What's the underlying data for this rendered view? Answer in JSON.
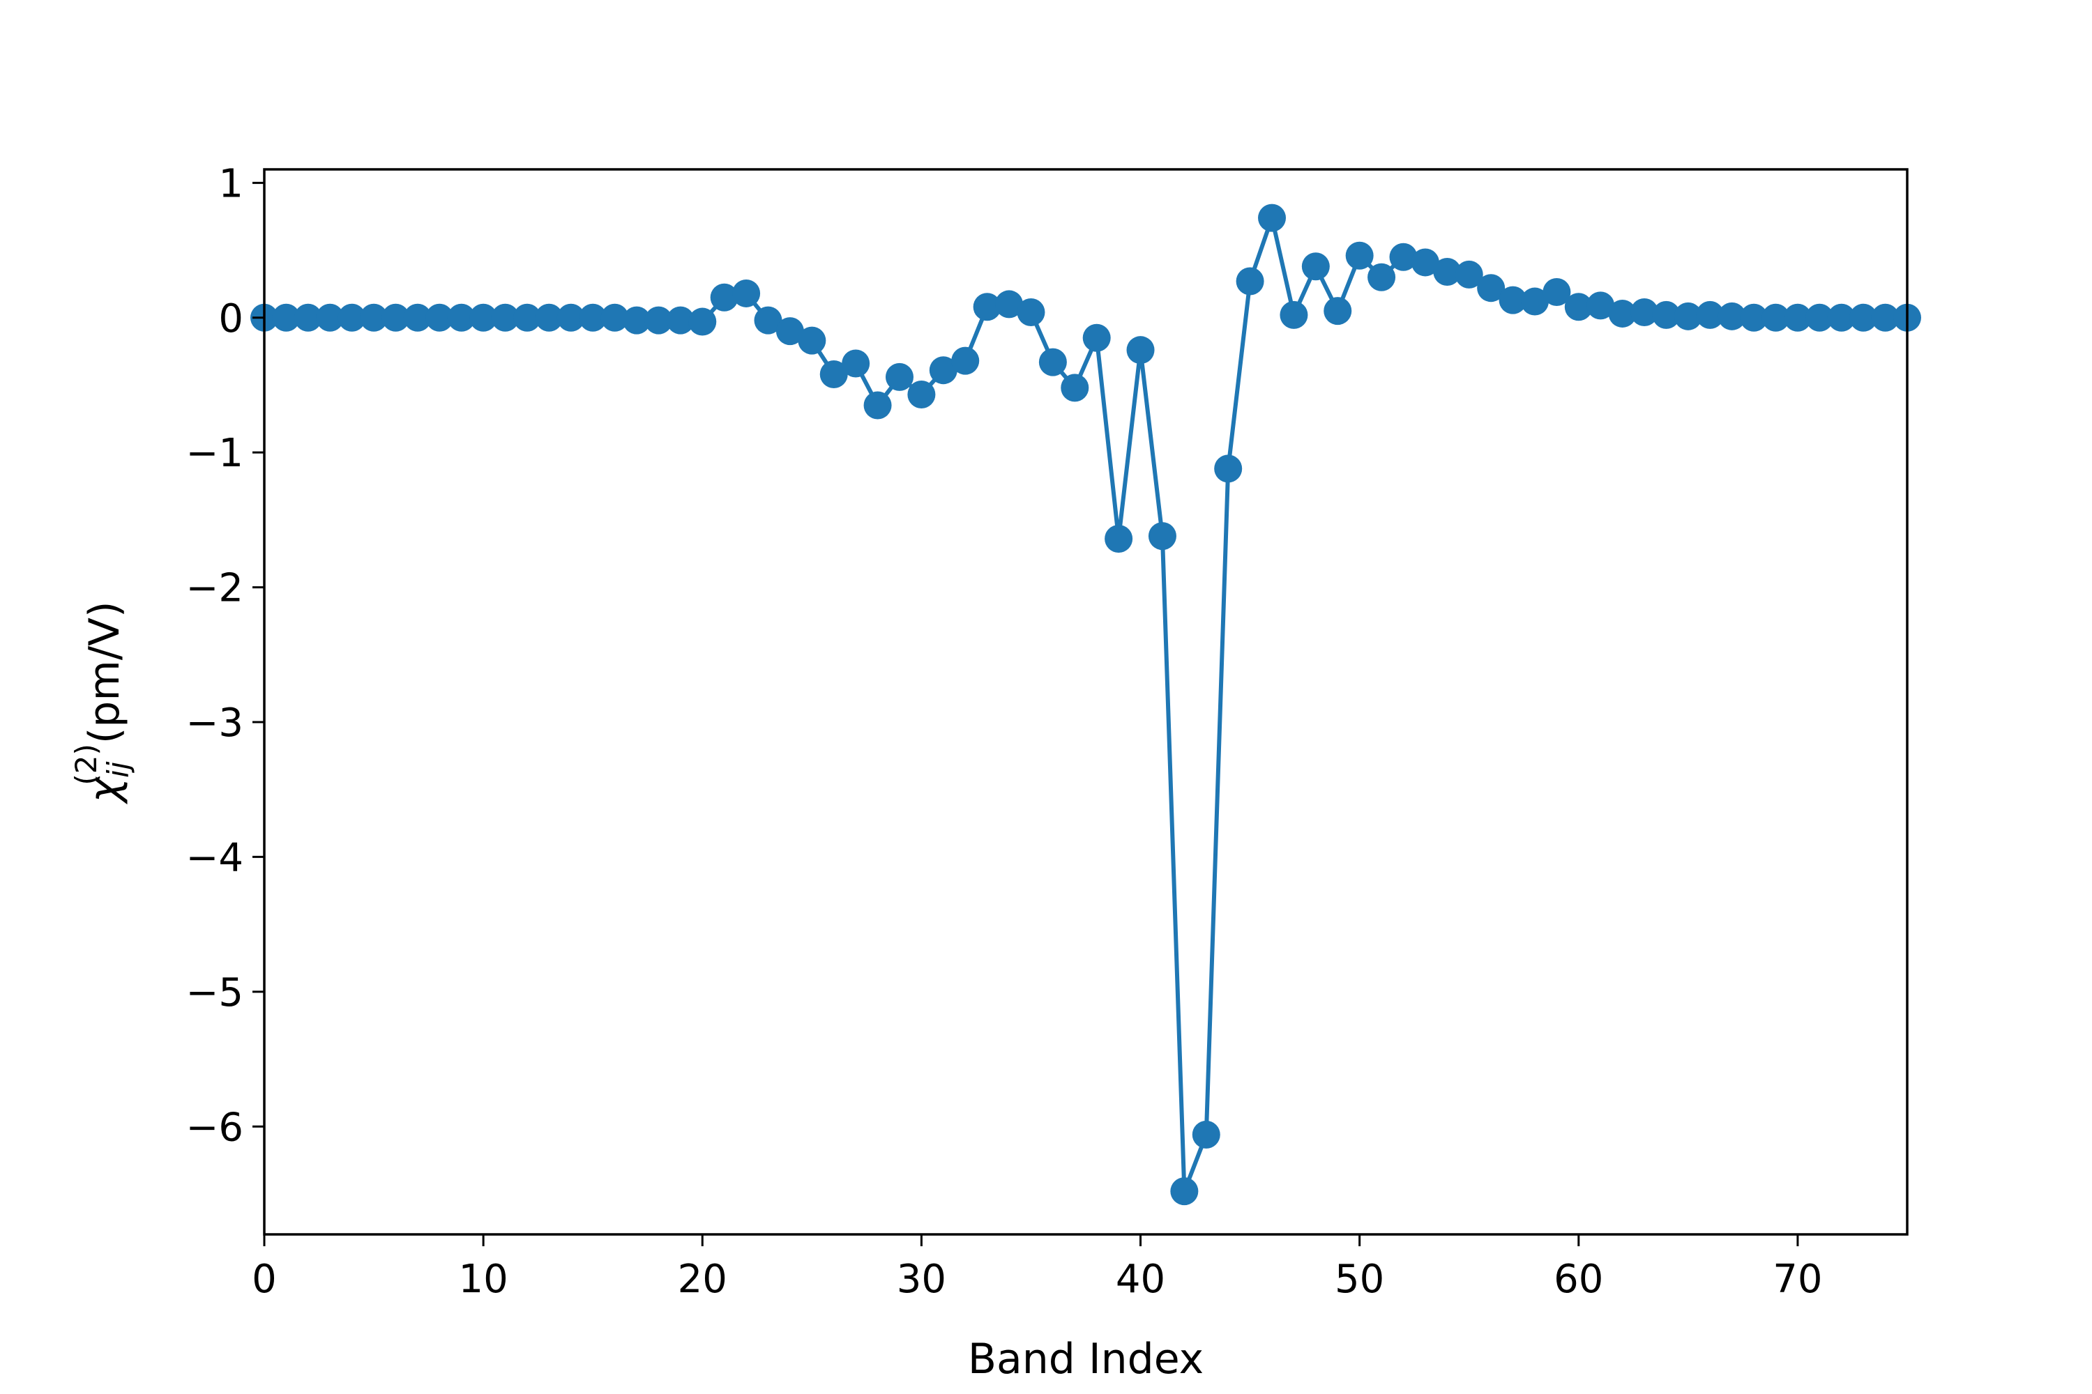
{
  "chart_data": {
    "type": "line",
    "title": "",
    "xlabel": "Band Index",
    "ylabel": {
      "symbol": "χ",
      "subscript": "ij",
      "superscript": "(2)",
      "unit": "(pm/V)"
    },
    "xlim": [
      0,
      75
    ],
    "ylim": [
      -6.8,
      1.1
    ],
    "xticks": [
      0,
      10,
      20,
      30,
      40,
      50,
      60,
      70
    ],
    "yticks": [
      1,
      0,
      -1,
      -2,
      -3,
      -4,
      -5,
      -6
    ],
    "xtick_labels": [
      "0",
      "10",
      "20",
      "30",
      "40",
      "50",
      "60",
      "70"
    ],
    "ytick_labels": [
      "1",
      "0",
      "−1",
      "−2",
      "−3",
      "−4",
      "−5",
      "−6"
    ],
    "grid": false,
    "series": [
      {
        "color": "#1f77b4",
        "marker": "circle",
        "x": [
          0,
          1,
          2,
          3,
          4,
          5,
          6,
          7,
          8,
          9,
          10,
          11,
          12,
          13,
          14,
          15,
          16,
          17,
          18,
          19,
          20,
          21,
          22,
          23,
          24,
          25,
          26,
          27,
          28,
          29,
          30,
          31,
          32,
          33,
          34,
          35,
          36,
          37,
          38,
          39,
          40,
          41,
          42,
          43,
          44,
          45,
          46,
          47,
          48,
          49,
          50,
          51,
          52,
          53,
          54,
          55,
          56,
          57,
          58,
          59,
          60,
          61,
          62,
          63,
          64,
          65,
          66,
          67,
          68,
          69,
          70,
          71,
          72,
          73,
          74,
          75
        ],
        "y": [
          0.0,
          0.0,
          0.0,
          0.0,
          0.0,
          0.0,
          0.0,
          0.0,
          0.0,
          0.0,
          0.0,
          0.0,
          0.0,
          0.0,
          0.0,
          0.0,
          0.0,
          -0.02,
          -0.02,
          -0.02,
          -0.03,
          0.15,
          0.18,
          -0.02,
          -0.1,
          -0.17,
          -0.42,
          -0.34,
          -0.65,
          -0.44,
          -0.57,
          -0.39,
          -0.32,
          0.08,
          0.1,
          0.04,
          -0.33,
          -0.52,
          -0.15,
          -1.64,
          -0.24,
          -1.62,
          -6.48,
          -6.06,
          -1.12,
          0.27,
          0.74,
          0.02,
          0.38,
          0.05,
          0.46,
          0.3,
          0.45,
          0.41,
          0.34,
          0.32,
          0.22,
          0.13,
          0.12,
          0.19,
          0.08,
          0.09,
          0.03,
          0.04,
          0.02,
          0.01,
          0.02,
          0.01,
          0.0,
          0.0,
          0.0,
          0.0,
          0.0,
          0.0,
          0.0,
          0.0
        ]
      }
    ]
  }
}
